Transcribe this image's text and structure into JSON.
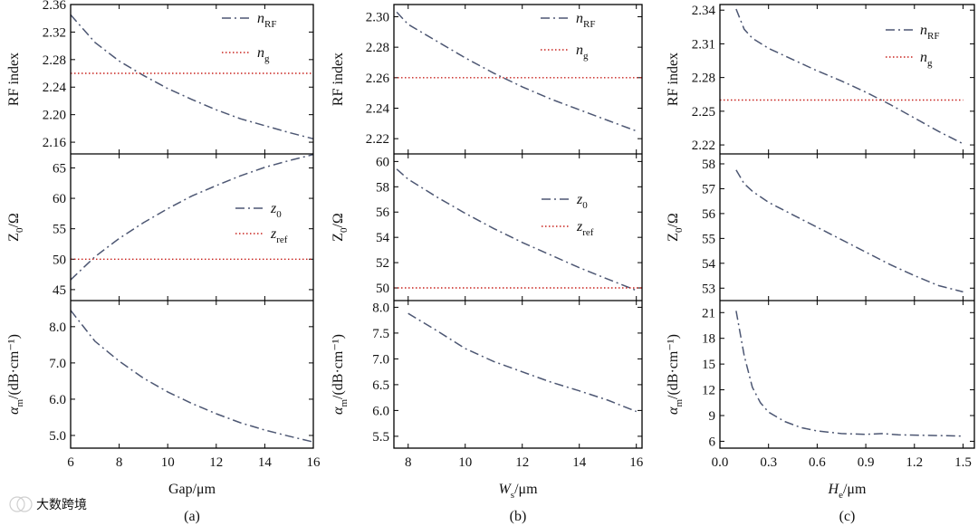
{
  "chart_data": [
    {
      "type": "line",
      "caption": "(a)",
      "xlabel": "Gap/μm",
      "xlim": [
        6,
        16
      ],
      "xticks": [
        "6",
        "8",
        "10",
        "12",
        "14",
        "16"
      ],
      "xtick_values": [
        6,
        8,
        10,
        12,
        14,
        16
      ],
      "panels": [
        {
          "ylabel": "RF  index",
          "ylim": [
            2.143,
            2.36
          ],
          "yticks": [
            "2.16",
            "2.20",
            "2.24",
            "2.28",
            "2.32",
            "2.36"
          ],
          "ytick_values": [
            2.16,
            2.2,
            2.24,
            2.28,
            2.32,
            2.36
          ],
          "series": [
            {
              "name": "n",
              "sub": "RF",
              "style": "dashdot",
              "x": [
                6,
                7,
                8,
                9,
                10,
                11,
                12,
                13,
                14,
                15,
                16
              ],
              "y": [
                2.345,
                2.305,
                2.278,
                2.257,
                2.238,
                2.222,
                2.207,
                2.194,
                2.184,
                2.174,
                2.165
              ]
            },
            {
              "name": "n",
              "sub": "g",
              "style": "dotted",
              "x": [
                6,
                16
              ],
              "y": [
                2.26,
                2.26
              ]
            }
          ]
        },
        {
          "ylabel": "Z0/Ω",
          "ylim": [
            43.2,
            67.3
          ],
          "yticks": [
            "45",
            "50",
            "55",
            "60",
            "65"
          ],
          "ytick_values": [
            45,
            50,
            55,
            60,
            65
          ],
          "series": [
            {
              "name": "z",
              "sub": "0",
              "style": "dashdot",
              "x": [
                6,
                7,
                8,
                9,
                10,
                11,
                12,
                13,
                14,
                15,
                16
              ],
              "y": [
                46.6,
                50.4,
                53.4,
                56.0,
                58.3,
                60.4,
                62.1,
                63.7,
                65.1,
                66.2,
                67.2
              ]
            },
            {
              "name": "z",
              "sub": "ref",
              "style": "dotted",
              "x": [
                6,
                16
              ],
              "y": [
                50,
                50
              ]
            }
          ]
        },
        {
          "ylabel": "αm/(dB·cm⁻¹)",
          "ylim": [
            4.65,
            8.72
          ],
          "yticks": [
            "5.0",
            "6.0",
            "7.0",
            "8.0"
          ],
          "ytick_values": [
            5.0,
            6.0,
            7.0,
            8.0
          ],
          "series": [
            {
              "name": "αm",
              "style": "dashdot",
              "x": [
                6,
                7,
                8,
                9,
                10,
                11,
                12,
                13,
                14,
                15,
                16
              ],
              "y": [
                8.45,
                7.6,
                7.05,
                6.58,
                6.2,
                5.88,
                5.6,
                5.35,
                5.15,
                4.98,
                4.82
              ]
            }
          ]
        }
      ]
    },
    {
      "type": "line",
      "caption": "(b)",
      "xlabel": "Ws/μm",
      "xlim": [
        7.5,
        16.2
      ],
      "xticks": [
        "8",
        "10",
        "12",
        "14",
        "16"
      ],
      "xtick_values": [
        8,
        10,
        12,
        14,
        16
      ],
      "panels": [
        {
          "ylabel": "RF  index",
          "ylim": [
            2.21,
            2.308
          ],
          "yticks": [
            "2.22",
            "2.24",
            "2.26",
            "2.28",
            "2.30"
          ],
          "ytick_values": [
            2.22,
            2.24,
            2.26,
            2.28,
            2.3
          ],
          "series": [
            {
              "name": "n",
              "sub": "RF",
              "style": "dashdot",
              "x": [
                7.6,
                8,
                9,
                10,
                11,
                12,
                13,
                14,
                15,
                16
              ],
              "y": [
                2.303,
                2.295,
                2.284,
                2.273,
                2.263,
                2.254,
                2.246,
                2.239,
                2.232,
                2.225
              ]
            },
            {
              "name": "n",
              "sub": "g",
              "style": "dotted",
              "x": [
                7.5,
                16.2
              ],
              "y": [
                2.26,
                2.26
              ]
            }
          ]
        },
        {
          "ylabel": "Z0/Ω",
          "ylim": [
            49.0,
            60.6
          ],
          "yticks": [
            "50",
            "52",
            "54",
            "56",
            "58",
            "60"
          ],
          "ytick_values": [
            50,
            52,
            54,
            56,
            58,
            60
          ],
          "series": [
            {
              "name": "z",
              "sub": "0",
              "style": "dashdot",
              "x": [
                7.6,
                8,
                9,
                10,
                11,
                12,
                13,
                14,
                15,
                16
              ],
              "y": [
                59.4,
                58.6,
                57.2,
                55.9,
                54.7,
                53.6,
                52.6,
                51.6,
                50.7,
                49.8
              ]
            },
            {
              "name": "z",
              "sub": "ref",
              "style": "dotted",
              "x": [
                7.5,
                16.2
              ],
              "y": [
                50,
                50
              ]
            }
          ]
        },
        {
          "ylabel": "αm/(dB·cm⁻¹)",
          "ylim": [
            5.27,
            8.13
          ],
          "yticks": [
            "5.5",
            "6.0",
            "6.5",
            "7.0",
            "7.5",
            "8.0"
          ],
          "ytick_values": [
            5.5,
            6.0,
            6.5,
            7.0,
            7.5,
            8.0
          ],
          "series": [
            {
              "name": "αm",
              "style": "dashdot",
              "x": [
                8,
                9,
                10,
                11,
                12,
                13,
                14,
                15,
                16
              ],
              "y": [
                7.88,
                7.55,
                7.2,
                6.95,
                6.75,
                6.55,
                6.38,
                6.2,
                5.98
              ]
            }
          ]
        }
      ]
    },
    {
      "type": "line",
      "caption": "(c)",
      "xlabel": "He/μm",
      "xlim": [
        0,
        1.57
      ],
      "xticks": [
        "0.0",
        "0.3",
        "0.6",
        "0.9",
        "1.2",
        "1.5"
      ],
      "xtick_values": [
        0.0,
        0.3,
        0.6,
        0.9,
        1.2,
        1.5
      ],
      "panels": [
        {
          "ylabel": "RF  index",
          "ylim": [
            2.212,
            2.345
          ],
          "yticks": [
            "2.22",
            "2.25",
            "2.28",
            "2.31",
            "2.34"
          ],
          "ytick_values": [
            2.22,
            2.25,
            2.28,
            2.31,
            2.34
          ],
          "series": [
            {
              "name": "n",
              "sub": "RF",
              "style": "dashdot",
              "x": [
                0.1,
                0.15,
                0.2,
                0.3,
                0.45,
                0.6,
                0.75,
                0.9,
                1.05,
                1.2,
                1.35,
                1.5
              ],
              "y": [
                2.341,
                2.323,
                2.315,
                2.306,
                2.296,
                2.286,
                2.277,
                2.267,
                2.256,
                2.244,
                2.232,
                2.221
              ]
            },
            {
              "name": "n",
              "sub": "g",
              "style": "dotted",
              "x": [
                0,
                1.5
              ],
              "y": [
                2.26,
                2.26
              ]
            }
          ]
        },
        {
          "ylabel": "Z0/Ω",
          "ylim": [
            52.5,
            58.4
          ],
          "yticks": [
            "53",
            "54",
            "55",
            "56",
            "57",
            "58"
          ],
          "ytick_values": [
            53,
            54,
            55,
            56,
            57,
            58
          ],
          "series": [
            {
              "name": "z",
              "sub": "0",
              "style": "dashdot",
              "x": [
                0.1,
                0.15,
                0.2,
                0.3,
                0.45,
                0.6,
                0.75,
                0.9,
                1.05,
                1.2,
                1.35,
                1.5
              ],
              "y": [
                57.75,
                57.2,
                56.9,
                56.45,
                55.95,
                55.45,
                54.95,
                54.45,
                53.95,
                53.5,
                53.1,
                52.85
              ]
            }
          ]
        },
        {
          "ylabel": "αm/(dB·cm⁻¹)",
          "ylim": [
            5.2,
            22.4
          ],
          "yticks": [
            "6",
            "9",
            "12",
            "15",
            "18",
            "21"
          ],
          "ytick_values": [
            6,
            9,
            12,
            15,
            18,
            21
          ],
          "series": [
            {
              "name": "αm",
              "style": "dashdot",
              "x": [
                0.1,
                0.15,
                0.2,
                0.25,
                0.3,
                0.4,
                0.5,
                0.6,
                0.75,
                0.9,
                1.0,
                1.1,
                1.25,
                1.4,
                1.5
              ],
              "y": [
                21.2,
                16.0,
                12.3,
                10.5,
                9.4,
                8.3,
                7.6,
                7.2,
                6.9,
                6.8,
                6.9,
                6.75,
                6.7,
                6.65,
                6.6
              ]
            }
          ]
        }
      ]
    }
  ],
  "watermark": {
    "symbol": "ⓒ",
    "text": "大数跨境"
  },
  "colors": {
    "curve": "#4d5773",
    "reference": "#c8231e",
    "frame": "#000000"
  }
}
